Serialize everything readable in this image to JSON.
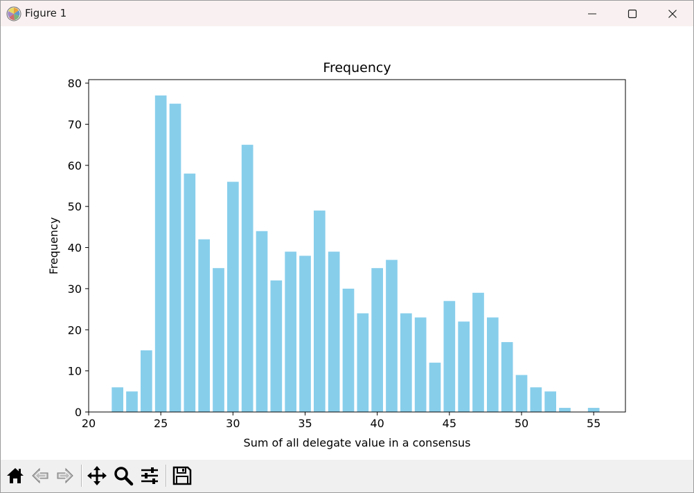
{
  "window": {
    "title": "Figure 1",
    "controls": [
      "minimize-icon",
      "maximize-icon",
      "close-icon"
    ]
  },
  "toolbar": {
    "buttons": [
      {
        "name": "home",
        "icon": "home-icon"
      },
      {
        "name": "back",
        "icon": "back-arrow-icon"
      },
      {
        "name": "forward",
        "icon": "forward-arrow-icon"
      },
      {
        "name": "pan",
        "icon": "move-icon"
      },
      {
        "name": "zoom",
        "icon": "zoom-icon"
      },
      {
        "name": "configure-subplots",
        "icon": "sliders-icon"
      },
      {
        "name": "save",
        "icon": "save-icon"
      }
    ]
  },
  "chart_data": {
    "type": "bar",
    "title": "Frequency",
    "xlabel": "Sum of all delegate value in a consensus",
    "ylabel": "Frequency",
    "x": [
      22,
      23,
      24,
      25,
      26,
      27,
      28,
      29,
      30,
      31,
      32,
      33,
      34,
      35,
      36,
      37,
      38,
      39,
      40,
      41,
      42,
      43,
      44,
      45,
      46,
      47,
      48,
      49,
      50,
      51,
      52,
      53,
      54,
      55
    ],
    "values": [
      6,
      5,
      15,
      77,
      75,
      58,
      42,
      35,
      56,
      65,
      44,
      32,
      39,
      38,
      49,
      39,
      30,
      24,
      35,
      37,
      24,
      23,
      12,
      27,
      22,
      29,
      23,
      17,
      9,
      6,
      5,
      1,
      0,
      1
    ],
    "xlim": [
      20,
      57.2
    ],
    "ylim": [
      0,
      80.85
    ],
    "xticks": [
      20,
      25,
      30,
      35,
      40,
      45,
      50,
      55
    ],
    "yticks": [
      0,
      10,
      20,
      30,
      40,
      50,
      60,
      70,
      80
    ],
    "bar_color": "#87ceeb",
    "grid": false
  }
}
